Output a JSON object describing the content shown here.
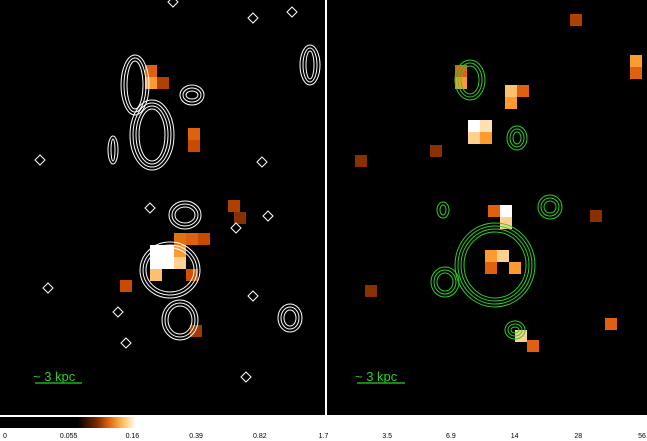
{
  "panels": [
    {
      "scale_label": "~ 3 kpc"
    },
    {
      "scale_label": "~ 3 kpc"
    }
  ],
  "colorbar": {
    "ticks": [
      "0",
      "0.055",
      "0.16",
      "0.39",
      "0.82",
      "1.7",
      "3.5",
      "6.9",
      "14",
      "28",
      "56"
    ]
  }
}
